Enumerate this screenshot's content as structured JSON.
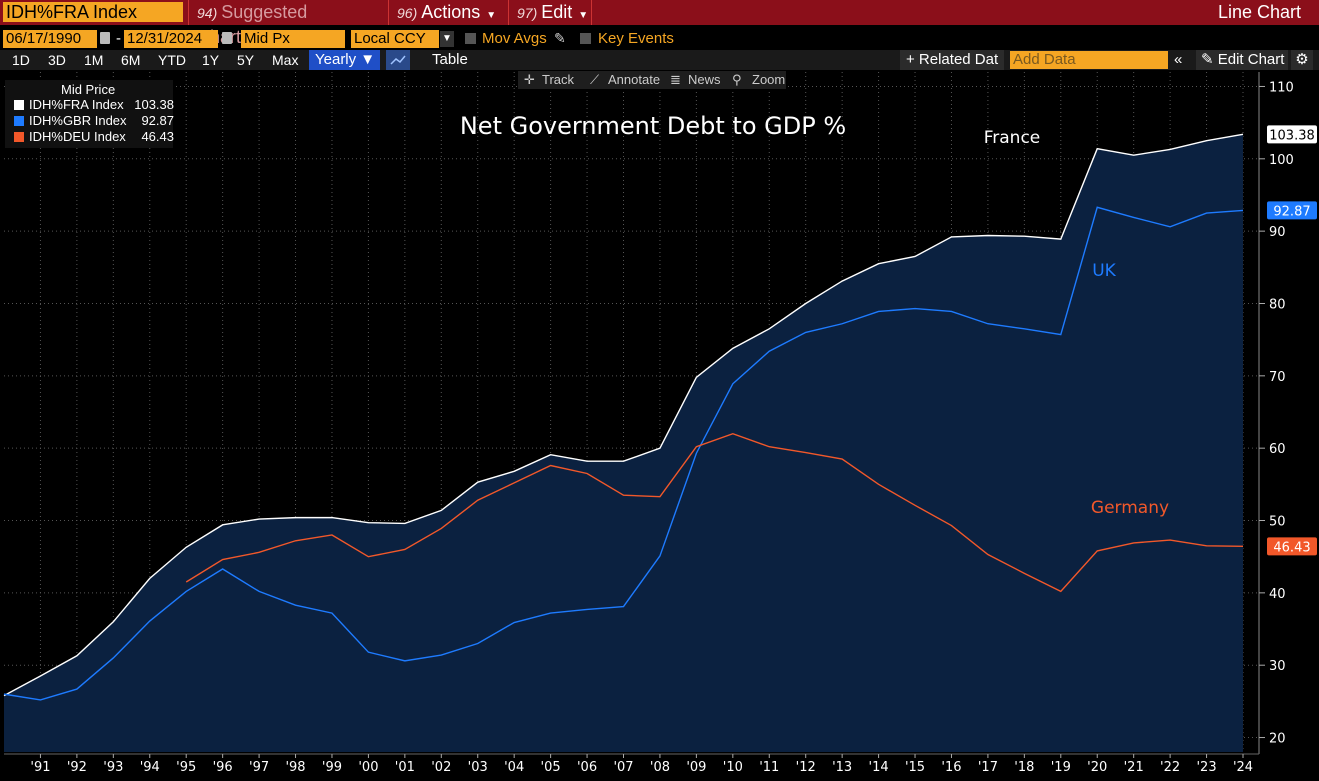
{
  "toolbar": {
    "ticker": "IDH%FRA Index",
    "menu": [
      {
        "num": "94)",
        "label": "Suggested Charts"
      },
      {
        "num": "96)",
        "label": "Actions"
      },
      {
        "num": "97)",
        "label": "Edit"
      }
    ],
    "chart_kind": "Line Chart"
  },
  "params": {
    "start_date": "06/17/1990",
    "end_date": "12/31/2024",
    "price_field": "Mid Px",
    "currency": "Local CCY",
    "mov_avgs": "Mov Avgs",
    "key_events": "Key Events"
  },
  "ranges": [
    "1D",
    "3D",
    "1M",
    "6M",
    "YTD",
    "1Y",
    "5Y",
    "Max"
  ],
  "periodicity": "Yearly ▼",
  "table_label": "Table",
  "related_label": "+ Related Dat",
  "add_data_placeholder": "Add Data",
  "edit_chart_label": "✎ Edit Chart",
  "tools": [
    "Track",
    "Annotate",
    "News",
    "Zoom"
  ],
  "legend": {
    "title": "Mid Price",
    "items": [
      {
        "name": "IDH%FRA Index",
        "value": "103.38",
        "color": "#ffffff"
      },
      {
        "name": "IDH%GBR Index",
        "value": "92.87",
        "color": "#1e7bff"
      },
      {
        "name": "IDH%DEU Index",
        "value": "46.43",
        "color": "#f2582a"
      }
    ]
  },
  "chart_data": {
    "type": "line",
    "title": "Net Government Debt to GDP %",
    "x_ticks": [
      "'91",
      "'92",
      "'93",
      "'94",
      "'95",
      "'96",
      "'97",
      "'98",
      "'99",
      "'00",
      "'01",
      "'02",
      "'03",
      "'04",
      "'05",
      "'06",
      "'07",
      "'08",
      "'09",
      "'10",
      "'11",
      "'12",
      "'13",
      "'14",
      "'15",
      "'16",
      "'17",
      "'18",
      "'19",
      "'20",
      "'21",
      "'22",
      "'23",
      "'24"
    ],
    "y_ticks": [
      20,
      30,
      40,
      50,
      60,
      70,
      80,
      90,
      100,
      110
    ],
    "ylim": [
      18,
      112
    ],
    "xlim": [
      1990,
      2024
    ],
    "grid": true,
    "axis_position": "right",
    "series": [
      {
        "name": "France",
        "color": "#ffffff",
        "label": "France",
        "last": "103.38",
        "x": [
          1990,
          1991,
          1992,
          1993,
          1994,
          1995,
          1996,
          1997,
          1998,
          1999,
          2000,
          2001,
          2002,
          2003,
          2004,
          2005,
          2006,
          2007,
          2008,
          2009,
          2010,
          2011,
          2012,
          2013,
          2014,
          2015,
          2016,
          2017,
          2018,
          2019,
          2020,
          2021,
          2022,
          2023,
          2024
        ],
        "values": [
          25.8,
          28.5,
          31.3,
          36.0,
          42.0,
          46.3,
          49.4,
          50.2,
          50.4,
          50.4,
          49.7,
          49.6,
          51.4,
          55.3,
          56.8,
          59.1,
          58.2,
          58.2,
          60.0,
          69.8,
          73.8,
          76.5,
          80.0,
          83.1,
          85.5,
          86.5,
          89.2,
          89.4,
          89.3,
          88.9,
          101.4,
          100.5,
          101.3,
          102.5,
          103.38
        ]
      },
      {
        "name": "UK",
        "color": "#1e7bff",
        "label": "UK",
        "last": "92.87",
        "x": [
          1990,
          1991,
          1992,
          1993,
          1994,
          1995,
          1996,
          1997,
          1998,
          1999,
          2000,
          2001,
          2002,
          2003,
          2004,
          2005,
          2006,
          2007,
          2008,
          2009,
          2010,
          2011,
          2012,
          2013,
          2014,
          2015,
          2016,
          2017,
          2018,
          2019,
          2020,
          2021,
          2022,
          2023,
          2024
        ],
        "values": [
          26.0,
          25.2,
          26.7,
          31.0,
          36.1,
          40.2,
          43.3,
          40.2,
          38.3,
          37.2,
          31.8,
          30.6,
          31.4,
          33.0,
          35.9,
          37.2,
          37.7,
          38.1,
          45.1,
          59.3,
          68.9,
          73.4,
          76.0,
          77.2,
          78.9,
          79.3,
          78.9,
          77.2,
          76.5,
          75.7,
          93.3,
          91.9,
          90.6,
          92.5,
          92.87
        ]
      },
      {
        "name": "Germany",
        "color": "#f2582a",
        "label": "Germany",
        "last": "46.43",
        "x": [
          1995,
          1996,
          1997,
          1998,
          1999,
          2000,
          2001,
          2002,
          2003,
          2004,
          2005,
          2006,
          2007,
          2008,
          2009,
          2010,
          2011,
          2012,
          2013,
          2014,
          2015,
          2016,
          2017,
          2018,
          2019,
          2020,
          2021,
          2022,
          2023,
          2024
        ],
        "values": [
          41.5,
          44.6,
          45.6,
          47.2,
          48.0,
          45.0,
          46.0,
          48.9,
          52.8,
          55.2,
          57.6,
          56.5,
          53.5,
          53.3,
          60.2,
          62.0,
          60.2,
          59.4,
          58.5,
          55.0,
          52.1,
          49.3,
          45.3,
          42.7,
          40.2,
          45.8,
          46.9,
          47.3,
          46.5,
          46.43
        ]
      }
    ]
  }
}
